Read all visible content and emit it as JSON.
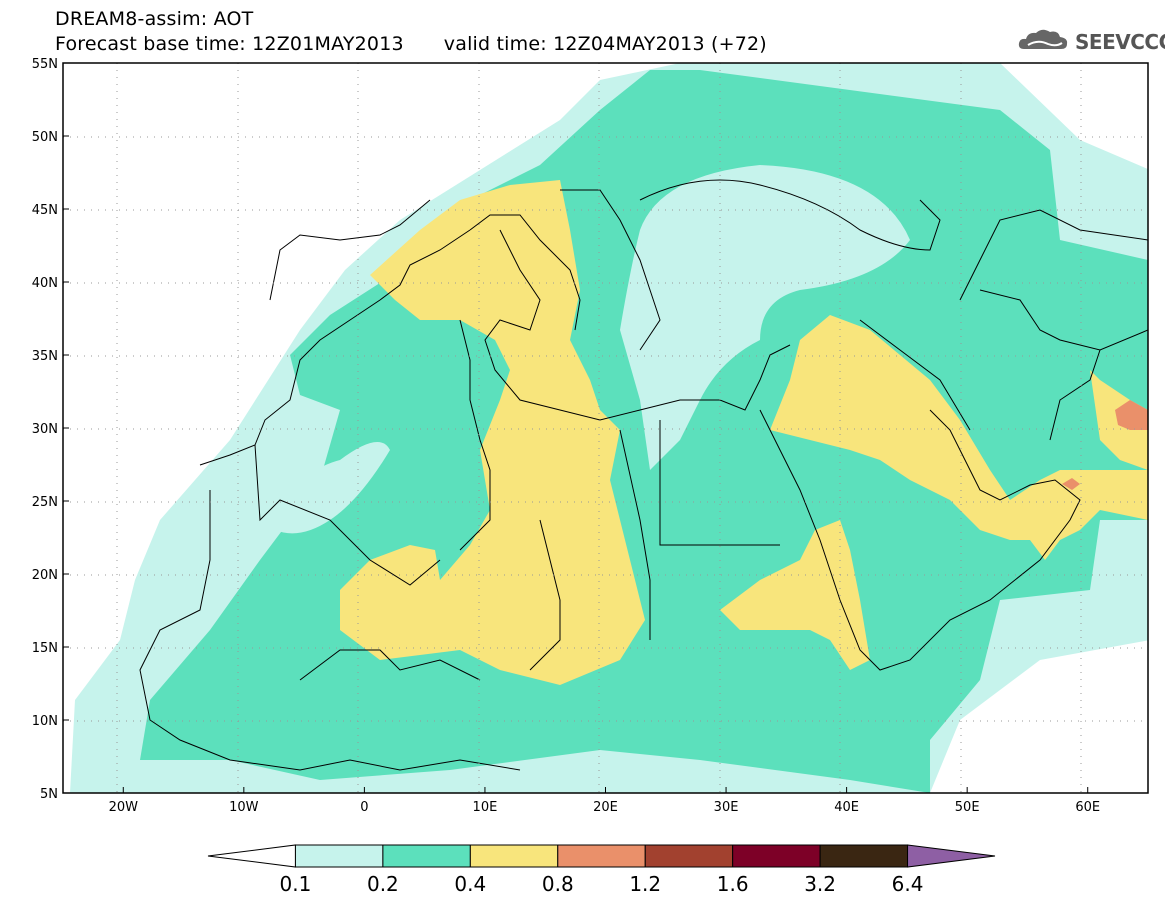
{
  "header": {
    "title_line1": "DREAM8-assim: AOT",
    "title_line2_base": "Forecast base time: 12Z01MAY2013",
    "title_line2_valid": "valid time: 12Z04MAY2013 (+72)",
    "logo_text": "SEEVCCC",
    "logo_icon": "cloud-logo-icon"
  },
  "map": {
    "lon_range": [
      -25,
      65
    ],
    "lat_range": [
      5,
      55
    ],
    "lat_ticks": [
      "55N",
      "50N",
      "45N",
      "40N",
      "35N",
      "30N",
      "25N",
      "20N",
      "15N",
      "10N",
      "5N"
    ],
    "lon_ticks": [
      "20W",
      "10W",
      "0",
      "10E",
      "20E",
      "30E",
      "40E",
      "50E",
      "60E"
    ],
    "grid": "dotted"
  },
  "legend": {
    "boundaries": [
      "0.1",
      "0.2",
      "0.4",
      "0.8",
      "1.2",
      "1.6",
      "3.2",
      "6.4"
    ],
    "colors": [
      "#ffffff",
      "#c6f3ec",
      "#5ce0bc",
      "#f8e57c",
      "#ea906a",
      "#a2412f",
      "#7d0027",
      "#3a2612",
      "#8e5fa4"
    ]
  }
}
